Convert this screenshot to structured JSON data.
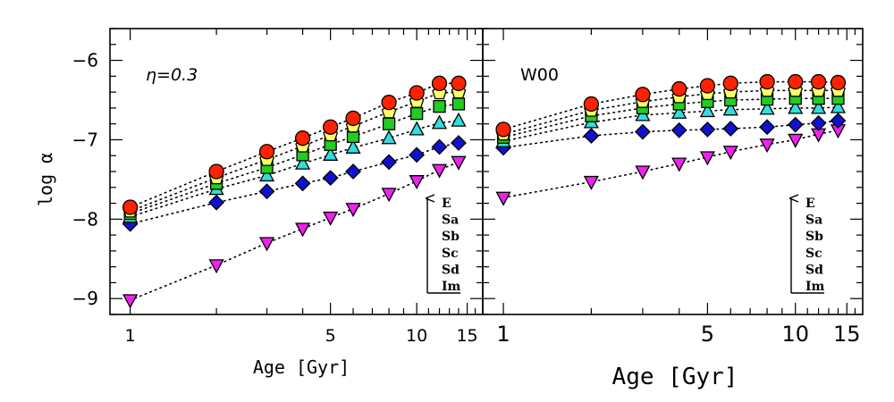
{
  "chart_data": [
    {
      "type": "scatter",
      "title": "η=0.3",
      "xlabel": "Age [Gyr]",
      "ylabel": "log α",
      "xscale": "log",
      "xlim": [
        0.85,
        17
      ],
      "ylim": [
        -9.2,
        -5.6
      ],
      "xticks": [
        1,
        5,
        10,
        15
      ],
      "yticks": [
        -9,
        -8,
        -7,
        -6
      ],
      "legend": [
        "E",
        "Sa",
        "Sb",
        "Sc",
        "Sd",
        "Im"
      ],
      "legend_placement": "bottom-right",
      "x": [
        1,
        2,
        3,
        4,
        5,
        6,
        8,
        10,
        12,
        14
      ],
      "series": [
        {
          "name": "E",
          "marker": "circle",
          "color": "#ff2200",
          "values": [
            -7.85,
            -7.4,
            -7.15,
            -6.98,
            -6.84,
            -6.73,
            -6.53,
            -6.41,
            -6.29,
            -6.29
          ]
        },
        {
          "name": "Sa",
          "marker": "pentagon",
          "color": "#ffff66",
          "values": [
            -7.9,
            -7.48,
            -7.25,
            -7.08,
            -6.94,
            -6.83,
            -6.65,
            -6.52,
            -6.41,
            -6.4
          ]
        },
        {
          "name": "Sb",
          "marker": "square",
          "color": "#22cc22",
          "values": [
            -7.93,
            -7.55,
            -7.35,
            -7.19,
            -7.06,
            -6.96,
            -6.8,
            -6.67,
            -6.58,
            -6.55
          ]
        },
        {
          "name": "Sc",
          "marker": "triangle-up",
          "color": "#33dddd",
          "values": [
            -7.97,
            -7.62,
            -7.45,
            -7.3,
            -7.19,
            -7.1,
            -6.98,
            -6.87,
            -6.79,
            -6.76
          ]
        },
        {
          "name": "Sd",
          "marker": "diamond",
          "color": "#1111cc",
          "values": [
            -8.06,
            -7.79,
            -7.65,
            -7.55,
            -7.48,
            -7.4,
            -7.28,
            -7.19,
            -7.09,
            -7.04
          ]
        },
        {
          "name": "Im",
          "marker": "triangle-down",
          "color": "#ee22ee",
          "values": [
            -9.02,
            -8.58,
            -8.3,
            -8.12,
            -7.98,
            -7.87,
            -7.68,
            -7.52,
            -7.38,
            -7.28
          ]
        }
      ]
    },
    {
      "type": "scatter",
      "title": "W00",
      "xlabel": "Age [Gyr]",
      "ylabel": "",
      "xscale": "log",
      "xlim": [
        0.85,
        17
      ],
      "ylim": [
        -9.2,
        -5.6
      ],
      "xticks": [
        1,
        5,
        10,
        15
      ],
      "yticks": [
        -9,
        -8,
        -7,
        -6
      ],
      "legend": [
        "E",
        "Sa",
        "Sb",
        "Sc",
        "Sd",
        "Im"
      ],
      "legend_placement": "bottom-right",
      "x": [
        1,
        2,
        3,
        4,
        5,
        6,
        8,
        10,
        12,
        14
      ],
      "series": [
        {
          "name": "E",
          "marker": "circle",
          "color": "#ff2200",
          "values": [
            -6.87,
            -6.55,
            -6.43,
            -6.36,
            -6.32,
            -6.29,
            -6.27,
            -6.27,
            -6.27,
            -6.28
          ]
        },
        {
          "name": "Sa",
          "marker": "pentagon",
          "color": "#ffff66",
          "values": [
            -6.93,
            -6.63,
            -6.52,
            -6.46,
            -6.42,
            -6.4,
            -6.38,
            -6.38,
            -6.38,
            -6.38
          ]
        },
        {
          "name": "Sb",
          "marker": "square",
          "color": "#22cc22",
          "values": [
            -6.97,
            -6.7,
            -6.6,
            -6.55,
            -6.52,
            -6.5,
            -6.49,
            -6.48,
            -6.48,
            -6.48
          ]
        },
        {
          "name": "Sc",
          "marker": "triangle-up",
          "color": "#33dddd",
          "values": [
            -7.02,
            -6.78,
            -6.69,
            -6.66,
            -6.64,
            -6.62,
            -6.61,
            -6.6,
            -6.6,
            -6.59
          ]
        },
        {
          "name": "Sd",
          "marker": "diamond",
          "color": "#1111cc",
          "values": [
            -7.1,
            -6.95,
            -6.9,
            -6.88,
            -6.87,
            -6.86,
            -6.84,
            -6.81,
            -6.79,
            -6.76
          ]
        },
        {
          "name": "Im",
          "marker": "triangle-down",
          "color": "#ee22ee",
          "values": [
            -7.73,
            -7.53,
            -7.4,
            -7.3,
            -7.22,
            -7.15,
            -7.06,
            -7.0,
            -6.93,
            -6.88
          ]
        }
      ]
    }
  ]
}
